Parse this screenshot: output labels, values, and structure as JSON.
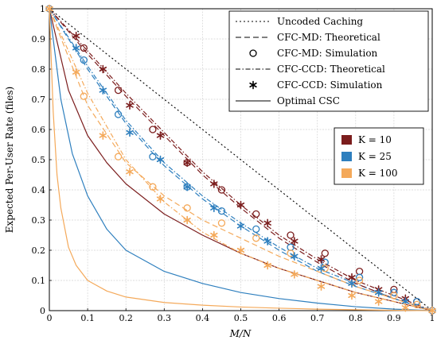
{
  "chart_data": {
    "type": "line",
    "xlabel": "M/N",
    "ylabel": "Expected Per-User Rate (files)",
    "xlim": [
      0,
      1
    ],
    "ylim": [
      0,
      1
    ],
    "xticks": [
      "0",
      "0.1",
      "0.2",
      "0.3",
      "0.4",
      "0.5",
      "0.6",
      "0.7",
      "0.8",
      "0.9",
      "1"
    ],
    "yticks": [
      "0",
      "0.1",
      "0.2",
      "0.3",
      "0.4",
      "0.5",
      "0.6",
      "0.7",
      "0.8",
      "0.9",
      "1"
    ],
    "grid": true,
    "style_legend": {
      "placement": "top-right",
      "entries": [
        {
          "label": "Uncoded Caching",
          "style": "dotted"
        },
        {
          "label": "CFC-MD: Theoretical",
          "style": "dashed"
        },
        {
          "label": "CFC-MD: Simulation",
          "style": "circle"
        },
        {
          "label": "CFC-CCD: Theoretical",
          "style": "dashdot"
        },
        {
          "label": "CFC-CCD: Simulation",
          "style": "asterisk"
        },
        {
          "label": "Optimal CSC",
          "style": "solid"
        }
      ]
    },
    "color_legend": {
      "placement": "right",
      "entries": [
        {
          "label": "K = 10",
          "color": "#7b1d1d"
        },
        {
          "label": "K = 25",
          "color": "#2e7fbe"
        },
        {
          "label": "K = 100",
          "color": "#f4a95a"
        }
      ]
    },
    "series": [
      {
        "name": "Uncoded Caching",
        "style": "dotted",
        "color": "#000000",
        "x": [
          0,
          1
        ],
        "y": [
          1,
          0
        ]
      },
      {
        "name": "CFC-MD: Theoretical (K = 10)",
        "style": "dashed",
        "color": "#7b1d1d",
        "x": [
          0,
          0.1,
          0.2,
          0.3,
          0.4,
          0.5,
          0.6,
          0.7,
          0.8,
          0.9,
          1.0
        ],
        "y": [
          1.0,
          0.85,
          0.71,
          0.58,
          0.45,
          0.34,
          0.24,
          0.16,
          0.09,
          0.04,
          0.0
        ]
      },
      {
        "name": "CFC-MD: Simulation (K = 10)",
        "style": "circle",
        "color": "#7b1d1d",
        "x": [
          0.09,
          0.18,
          0.27,
          0.36,
          0.45,
          0.54,
          0.63,
          0.72,
          0.81,
          0.9,
          0.96
        ],
        "y": [
          0.87,
          0.73,
          0.6,
          0.49,
          0.4,
          0.32,
          0.25,
          0.19,
          0.13,
          0.07,
          0.03
        ]
      },
      {
        "name": "CFC-CCD: Theoretical (K = 10)",
        "style": "dashdot",
        "color": "#7b1d1d",
        "x": [
          0,
          0.1,
          0.2,
          0.3,
          0.4,
          0.5,
          0.6,
          0.7,
          0.8,
          0.9,
          1.0
        ],
        "y": [
          1.0,
          0.86,
          0.72,
          0.59,
          0.46,
          0.35,
          0.25,
          0.17,
          0.1,
          0.05,
          0.0
        ]
      },
      {
        "name": "CFC-CCD: Simulation (K = 10)",
        "style": "asterisk",
        "color": "#7b1d1d",
        "x": [
          0.07,
          0.14,
          0.21,
          0.29,
          0.36,
          0.43,
          0.5,
          0.57,
          0.64,
          0.71,
          0.79,
          0.86,
          0.93
        ],
        "y": [
          0.91,
          0.8,
          0.68,
          0.58,
          0.49,
          0.42,
          0.35,
          0.29,
          0.23,
          0.17,
          0.11,
          0.07,
          0.04
        ]
      },
      {
        "name": "Optimal CSC (K = 10)",
        "style": "solid",
        "color": "#7b1d1d",
        "x": [
          0,
          0.05,
          0.1,
          0.15,
          0.2,
          0.3,
          0.4,
          0.5,
          0.6,
          0.7,
          0.8,
          0.9,
          1.0
        ],
        "y": [
          1.0,
          0.73,
          0.58,
          0.49,
          0.42,
          0.32,
          0.25,
          0.19,
          0.14,
          0.1,
          0.06,
          0.03,
          0.0
        ]
      },
      {
        "name": "CFC-MD: Theoretical (K = 25)",
        "style": "dashed",
        "color": "#2e7fbe",
        "x": [
          0,
          0.1,
          0.2,
          0.3,
          0.4,
          0.5,
          0.6,
          0.7,
          0.8,
          0.9,
          1.0
        ],
        "y": [
          1.0,
          0.8,
          0.62,
          0.48,
          0.37,
          0.28,
          0.2,
          0.13,
          0.08,
          0.04,
          0.0
        ]
      },
      {
        "name": "CFC-MD: Simulation (K = 25)",
        "style": "circle",
        "color": "#2e7fbe",
        "x": [
          0.09,
          0.18,
          0.27,
          0.36,
          0.45,
          0.54,
          0.63,
          0.72,
          0.81,
          0.9,
          0.96
        ],
        "y": [
          0.83,
          0.65,
          0.51,
          0.41,
          0.33,
          0.27,
          0.21,
          0.16,
          0.11,
          0.06,
          0.03
        ]
      },
      {
        "name": "CFC-CCD: Theoretical (K = 25)",
        "style": "dashdot",
        "color": "#2e7fbe",
        "x": [
          0,
          0.1,
          0.2,
          0.3,
          0.4,
          0.5,
          0.6,
          0.7,
          0.8,
          0.9,
          1.0
        ],
        "y": [
          1.0,
          0.81,
          0.63,
          0.49,
          0.38,
          0.29,
          0.21,
          0.14,
          0.09,
          0.04,
          0.0
        ]
      },
      {
        "name": "CFC-CCD: Simulation (K = 25)",
        "style": "asterisk",
        "color": "#2e7fbe",
        "x": [
          0.07,
          0.14,
          0.21,
          0.29,
          0.36,
          0.43,
          0.5,
          0.57,
          0.64,
          0.71,
          0.79,
          0.86,
          0.93
        ],
        "y": [
          0.87,
          0.73,
          0.59,
          0.5,
          0.41,
          0.34,
          0.28,
          0.23,
          0.18,
          0.14,
          0.09,
          0.06,
          0.03
        ]
      },
      {
        "name": "Optimal CSC (K = 25)",
        "style": "solid",
        "color": "#2e7fbe",
        "x": [
          0,
          0.03,
          0.06,
          0.1,
          0.15,
          0.2,
          0.3,
          0.4,
          0.5,
          0.6,
          0.7,
          0.8,
          0.9,
          1.0
        ],
        "y": [
          1.0,
          0.7,
          0.52,
          0.38,
          0.27,
          0.2,
          0.13,
          0.09,
          0.06,
          0.04,
          0.025,
          0.013,
          0.005,
          0.0
        ]
      },
      {
        "name": "CFC-MD: Theoretical (K = 100)",
        "style": "dashed",
        "color": "#f4a95a",
        "x": [
          0,
          0.1,
          0.2,
          0.3,
          0.4,
          0.5,
          0.6,
          0.7,
          0.8,
          0.9,
          1.0
        ],
        "y": [
          1.0,
          0.68,
          0.49,
          0.38,
          0.3,
          0.24,
          0.18,
          0.13,
          0.08,
          0.04,
          0.0
        ]
      },
      {
        "name": "CFC-MD: Simulation (K = 100)",
        "style": "circle",
        "color": "#f4a95a",
        "x": [
          0.09,
          0.18,
          0.27,
          0.36,
          0.45,
          0.54,
          0.63,
          0.72,
          0.81,
          0.9,
          0.96
        ],
        "y": [
          0.71,
          0.51,
          0.41,
          0.34,
          0.29,
          0.24,
          0.19,
          0.14,
          0.1,
          0.05,
          0.02
        ]
      },
      {
        "name": "CFC-CCD: Theoretical (K = 100)",
        "style": "dashdot",
        "color": "#f4a95a",
        "x": [
          0,
          0.1,
          0.2,
          0.3,
          0.4,
          0.5,
          0.6,
          0.7,
          0.8,
          0.9,
          1.0
        ],
        "y": [
          1.0,
          0.72,
          0.5,
          0.36,
          0.26,
          0.19,
          0.14,
          0.1,
          0.06,
          0.03,
          0.0
        ]
      },
      {
        "name": "CFC-CCD: Simulation (K = 100)",
        "style": "asterisk",
        "color": "#f4a95a",
        "x": [
          0.07,
          0.14,
          0.21,
          0.29,
          0.36,
          0.43,
          0.5,
          0.57,
          0.64,
          0.71,
          0.79,
          0.86,
          0.93
        ],
        "y": [
          0.79,
          0.58,
          0.46,
          0.37,
          0.3,
          0.25,
          0.2,
          0.15,
          0.12,
          0.08,
          0.05,
          0.03,
          0.01
        ]
      },
      {
        "name": "Optimal CSC (K = 100)",
        "style": "solid",
        "color": "#f4a95a",
        "x": [
          0,
          0.01,
          0.02,
          0.03,
          0.05,
          0.07,
          0.1,
          0.15,
          0.2,
          0.3,
          0.4,
          0.5,
          0.6,
          0.7,
          0.8,
          0.9,
          1.0
        ],
        "y": [
          1.0,
          0.66,
          0.45,
          0.34,
          0.21,
          0.15,
          0.1,
          0.065,
          0.045,
          0.027,
          0.018,
          0.012,
          0.008,
          0.005,
          0.003,
          0.001,
          0.0
        ]
      }
    ]
  }
}
